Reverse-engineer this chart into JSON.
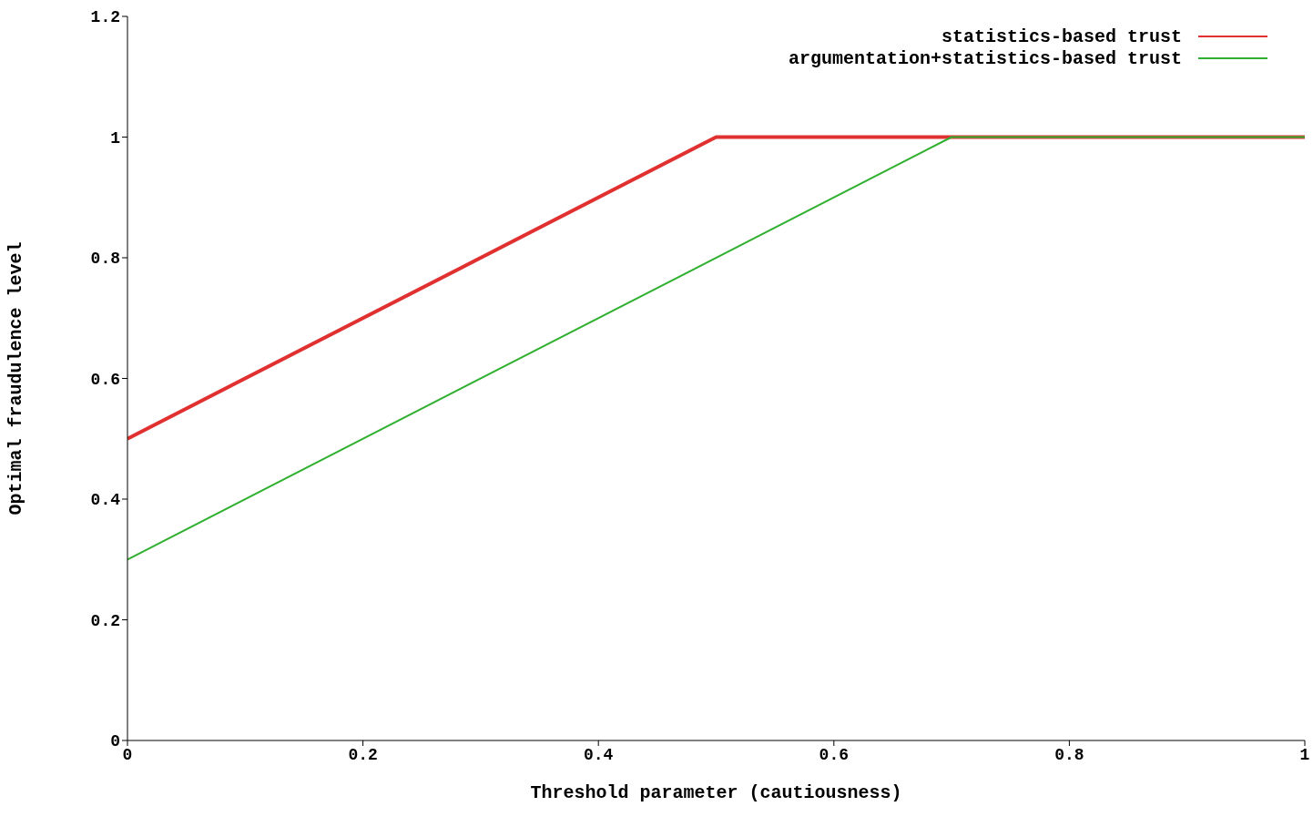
{
  "chart_data": {
    "type": "line",
    "xlabel": "Threshold parameter (cautiousness)",
    "ylabel": "Optimal fraudulence level",
    "series": [
      {
        "name": "statistics-based trust",
        "color": "#e03030",
        "x": [
          0,
          0.5,
          1
        ],
        "values": [
          0.5,
          1,
          1
        ]
      },
      {
        "name": "argumentation+statistics-based trust",
        "color": "#30b030",
        "x": [
          0,
          0.7,
          1
        ],
        "values": [
          0.3,
          1,
          1
        ]
      }
    ],
    "xlim": [
      0,
      1
    ],
    "xticks": [
      0,
      0.2,
      0.4,
      0.6,
      0.8,
      1
    ],
    "ylim": [
      0,
      1.2
    ],
    "yticks": [
      0,
      0.2,
      0.4,
      0.6,
      0.8,
      1,
      1.2
    ],
    "grid": false,
    "legend": "top right",
    "marker": "none",
    "line_style": "solid"
  }
}
